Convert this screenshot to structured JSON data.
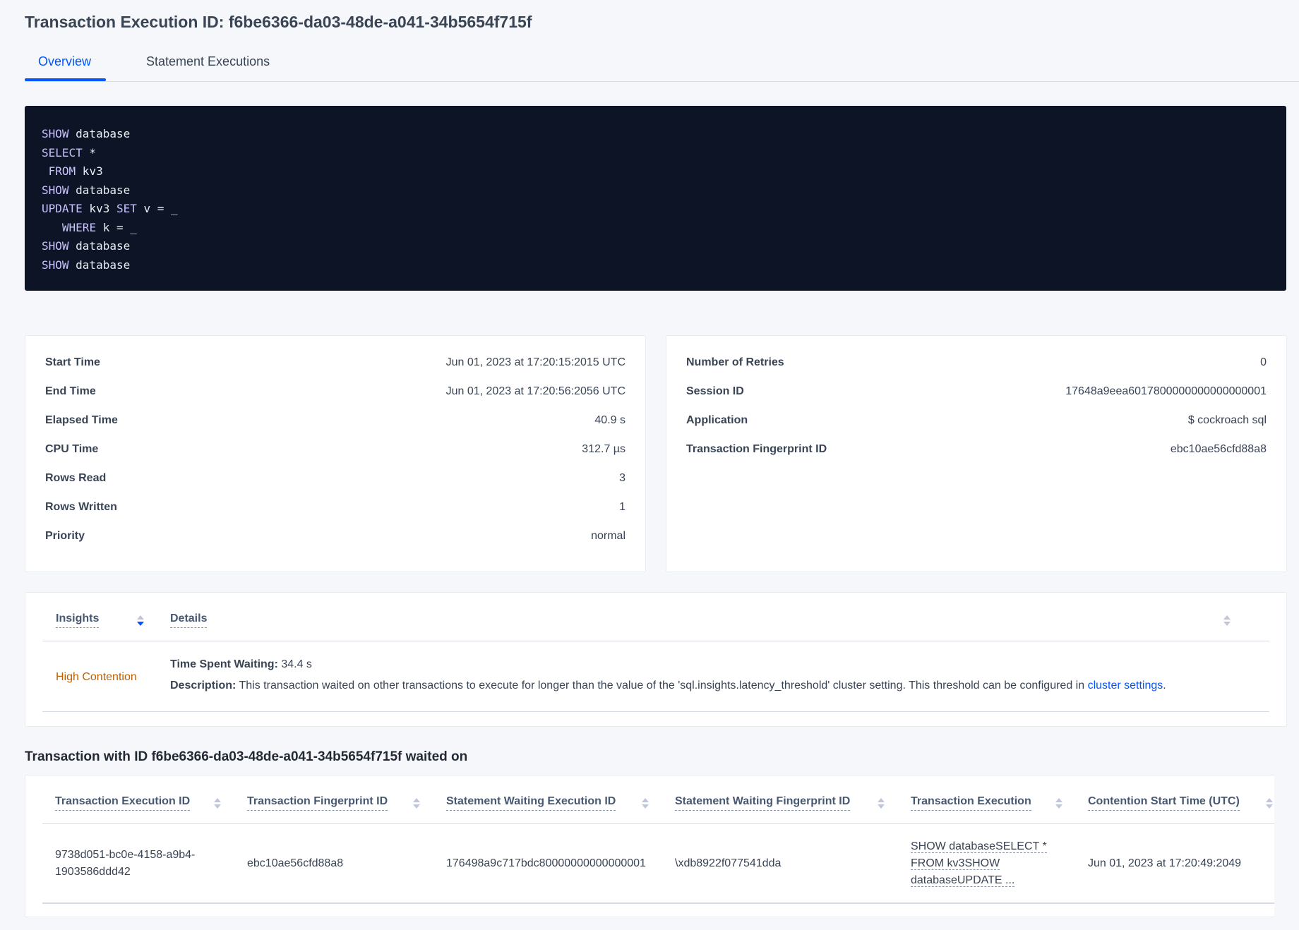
{
  "header": {
    "title": "Transaction Execution ID: f6be6366-da03-48de-a041-34b5654f715f"
  },
  "tabs": [
    {
      "label": "Overview",
      "active": true
    },
    {
      "label": "Statement Executions",
      "active": false
    }
  ],
  "sql": [
    [
      {
        "k": "SHOW"
      },
      {
        "t": " database"
      }
    ],
    [
      {
        "k": "SELECT"
      },
      {
        "t": " *"
      }
    ],
    [
      {
        "t": " "
      },
      {
        "k": "FROM"
      },
      {
        "t": " kv3"
      }
    ],
    [
      {
        "k": "SHOW"
      },
      {
        "t": " database"
      }
    ],
    [
      {
        "k": "UPDATE"
      },
      {
        "t": " kv3 "
      },
      {
        "k": "SET"
      },
      {
        "t": " v = _"
      }
    ],
    [
      {
        "t": "   "
      },
      {
        "k": "WHERE"
      },
      {
        "t": " k = _"
      }
    ],
    [
      {
        "k": "SHOW"
      },
      {
        "t": " database"
      }
    ],
    [
      {
        "k": "SHOW"
      },
      {
        "t": " database"
      }
    ]
  ],
  "summary_left": [
    {
      "label": "Start Time",
      "value": "Jun 01, 2023 at 17:20:15:2015 UTC"
    },
    {
      "label": "End Time",
      "value": "Jun 01, 2023 at 17:20:56:2056 UTC"
    },
    {
      "label": "Elapsed Time",
      "value": "40.9 s"
    },
    {
      "label": "CPU Time",
      "value": "312.7 µs"
    },
    {
      "label": "Rows Read",
      "value": "3"
    },
    {
      "label": "Rows Written",
      "value": "1"
    },
    {
      "label": "Priority",
      "value": "normal"
    }
  ],
  "summary_right": [
    {
      "label": "Number of Retries",
      "value": "0"
    },
    {
      "label": "Session ID",
      "value": "17648a9eea6017800000000000000001"
    },
    {
      "label": "Application",
      "value": "$ cockroach sql"
    },
    {
      "label": "Transaction Fingerprint ID",
      "value": "ebc10ae56cfd88a8",
      "link": true
    }
  ],
  "insights": {
    "columns": [
      "Insights",
      "Details"
    ],
    "row": {
      "insight": "High Contention",
      "time_label": "Time Spent Waiting:",
      "time_value": " 34.4 s",
      "desc_label": "Description:",
      "desc_text": " This transaction waited on other transactions to execute for longer than the value of the 'sql.insights.latency_threshold' cluster setting. This threshold can be configured in ",
      "desc_link": "cluster settings",
      "desc_end": "."
    }
  },
  "waited_on": {
    "title": "Transaction with ID f6be6366-da03-48de-a041-34b5654f715f waited on",
    "columns": [
      "Transaction Execution ID",
      "Transaction Fingerprint ID",
      "Statement Waiting Execution ID",
      "Statement Waiting Fingerprint ID",
      "Transaction Execution",
      "Contention Start Time (UTC)"
    ],
    "rows": [
      {
        "txn_exec_id": "9738d051-bc0e-4158-a9b4-1903586ddd42",
        "txn_fp_id": "ebc10ae56cfd88a8",
        "stmt_exec_id": "176498a9c717bdc80000000000000001",
        "stmt_fp_id": "\\xdb8922f077541dda",
        "txn_exec_lines": [
          "SHOW databaseSELECT *",
          "FROM kv3SHOW",
          "databaseUPDATE ..."
        ],
        "start_time": "Jun 01, 2023 at 17:20:49:2049"
      }
    ]
  },
  "colors": {
    "accent": "#0055ff",
    "code_bg": "#0c1426",
    "insight": "#c05f00"
  }
}
